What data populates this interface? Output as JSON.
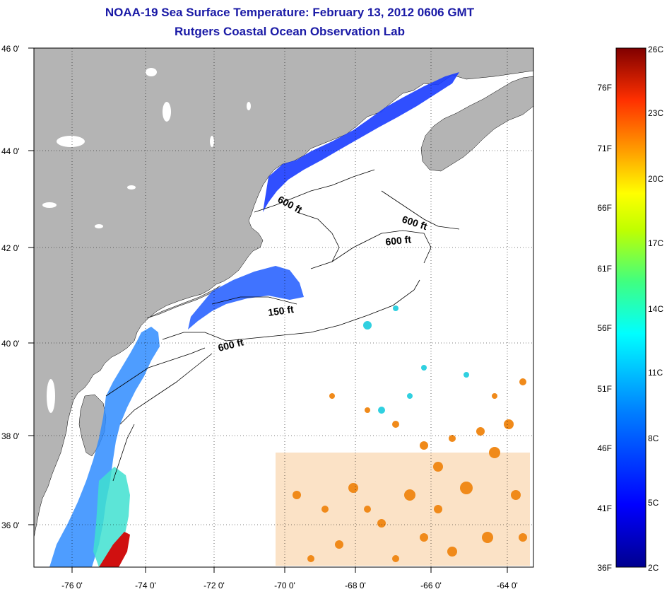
{
  "title": "NOAA-19 Sea Surface Temperature:  February 13, 2012 0606 GMT",
  "subtitle": "Rutgers Coastal Ocean Observation Lab",
  "lat_labels": [
    "46 0'",
    "44 0'",
    "42 0'",
    "40 0'",
    "38 0'",
    "36 0'"
  ],
  "lon_labels": [
    "-76 0'",
    "-74 0'",
    "-72 0'",
    "-70 0'",
    "-68 0'",
    "-66 0'",
    "-64 0'"
  ],
  "contour_labels": [
    "600 ft",
    "600 ft",
    "600 ft",
    "150 ft",
    "600 ft"
  ],
  "colorbar": {
    "fahrenheit": [
      "76F",
      "71F",
      "66F",
      "61F",
      "56F",
      "51F",
      "46F",
      "41F",
      "36F"
    ],
    "celsius": [
      "26C",
      "23C",
      "20C",
      "17C",
      "14C",
      "11C",
      "8C",
      "5C",
      "2C"
    ]
  },
  "colors": {
    "title": "#1a1aa6",
    "land": "#b4b4b4",
    "water": "#ffffff"
  }
}
